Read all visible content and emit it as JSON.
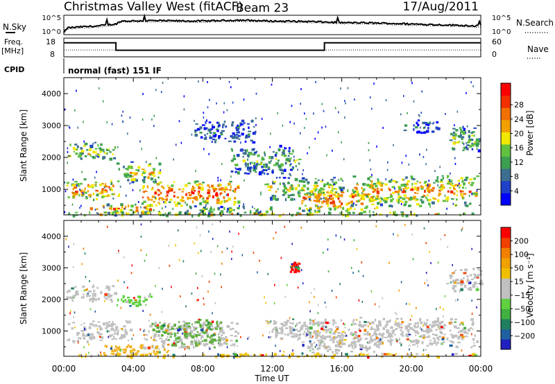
{
  "header": {
    "site": "Christmas Valley West (fitACF)",
    "beam": "Beam 23",
    "date": "17/Aug/2011"
  },
  "strip_labels": {
    "nsky": "N.Sky",
    "nsearch": "N.Search",
    "freq_line1": "Freq.",
    "freq_line2": "[MHz]",
    "nave": "Nave",
    "cpid": "CPID",
    "cpid_value": "normal (fast) 151 IF",
    "nsky_ticks": [
      "10^5",
      "10^0"
    ],
    "nsearch_ticks": [
      "10^5",
      "10^0"
    ],
    "freq_ticks": [
      "18",
      "8"
    ],
    "nave_ticks": [
      "60",
      "0"
    ]
  },
  "chart_data": [
    {
      "type": "line",
      "name": "strip-noise",
      "ylabel_left": "N.Sky",
      "ylabel_right": "N.Search",
      "ylim": [
        "10^0",
        "10^5"
      ],
      "x_hours": [
        0,
        0.2,
        1,
        2,
        3,
        3.3,
        5,
        8,
        10,
        12,
        14,
        16,
        18,
        20,
        22,
        24
      ],
      "nsky_level": [
        0.1,
        0.35,
        0.4,
        0.45,
        0.55,
        0.7,
        0.72,
        0.7,
        0.75,
        0.7,
        0.68,
        0.62,
        0.6,
        0.55,
        0.5,
        0.45
      ]
    },
    {
      "type": "line",
      "name": "strip-frequency",
      "x_hours": [
        0,
        3,
        3,
        15,
        15,
        24
      ],
      "freq_mhz": [
        15.5,
        15.5,
        11.5,
        11.5,
        15.5,
        15.5
      ],
      "nave": [
        22,
        22,
        22,
        22,
        22,
        22
      ],
      "left_ylim": [
        8,
        18
      ],
      "right_ylim": [
        0,
        60
      ]
    },
    {
      "type": "heatmap",
      "name": "power",
      "ylabel": "Slant Range [km]",
      "xlabel": "Time UT",
      "x_ticks": [
        "00:00",
        "04:00",
        "08:00",
        "12:00",
        "16:00",
        "20:00",
        "00:00"
      ],
      "y_ticks": [
        1000,
        2000,
        3000,
        4000
      ],
      "xlim_hours": [
        0,
        24
      ],
      "ylim_km": [
        200,
        4500
      ],
      "colorbar": {
        "label": "Power [dB]",
        "ticks": [
          "4",
          "8",
          "12",
          "16",
          "20",
          "24",
          "28"
        ],
        "colors": [
          "#0000ff",
          "#2040c8",
          "#3c6e90",
          "#3c9e50",
          "#60c040",
          "#f0e800",
          "#f0a000",
          "#f07000",
          "#f03000",
          "#ff0000"
        ]
      },
      "echo_regions": [
        {
          "t0": 0.1,
          "t1": 3.0,
          "r0": 1950,
          "r1": 2500,
          "level": 0.55
        },
        {
          "t0": 0.1,
          "t1": 3.2,
          "r0": 700,
          "r1": 1350,
          "level": 0.75
        },
        {
          "t0": 1.5,
          "t1": 5.5,
          "r0": 250,
          "r1": 600,
          "level": 0.7
        },
        {
          "t0": 3.0,
          "t1": 5.5,
          "r0": 1200,
          "r1": 1900,
          "level": 0.6
        },
        {
          "t0": 4.5,
          "t1": 10.0,
          "r0": 500,
          "r1": 1300,
          "level": 0.85
        },
        {
          "t0": 7.0,
          "t1": 12.0,
          "r0": 250,
          "r1": 500,
          "level": 0.45
        },
        {
          "t0": 7.5,
          "t1": 11.0,
          "r0": 2500,
          "r1": 3200,
          "level": 0.25
        },
        {
          "t0": 9.5,
          "t1": 13.5,
          "r0": 1500,
          "r1": 2400,
          "level": 0.4
        },
        {
          "t0": 11.5,
          "t1": 16.0,
          "r0": 700,
          "r1": 1400,
          "level": 0.55
        },
        {
          "t0": 13.5,
          "t1": 18.0,
          "r0": 300,
          "r1": 1100,
          "level": 0.8
        },
        {
          "t0": 16.5,
          "t1": 23.8,
          "r0": 500,
          "r1": 1450,
          "level": 0.7
        },
        {
          "t0": 19.5,
          "t1": 21.5,
          "r0": 2800,
          "r1": 3200,
          "level": 0.25
        },
        {
          "t0": 22.0,
          "t1": 24.0,
          "r0": 2200,
          "r1": 3000,
          "level": 0.45
        },
        {
          "t0": 0.1,
          "t1": 24.0,
          "r0": 200,
          "r1": 320,
          "level": 0.6
        }
      ]
    },
    {
      "type": "heatmap",
      "name": "velocity",
      "ylabel": "Slant Range [km]",
      "xlabel": "Time UT",
      "x_ticks": [
        "00:00",
        "04:00",
        "08:00",
        "12:00",
        "16:00",
        "20:00",
        "00:00"
      ],
      "y_ticks": [
        1000,
        2000,
        3000,
        4000
      ],
      "xlim_hours": [
        0,
        24
      ],
      "ylim_km": [
        200,
        4500
      ],
      "colorbar": {
        "label": "Velocity [m s⁻¹]",
        "ticks": [
          "200",
          "100",
          "50",
          "15",
          "−15",
          "−50",
          "−100",
          "−200"
        ],
        "colors": [
          "#2020c0",
          "#2060a0",
          "#208060",
          "#40b040",
          "#60d040",
          "#c0c0c0",
          "#c0c0c0",
          "#f0c000",
          "#f0a000",
          "#f08000",
          "#f04000",
          "#ff0000"
        ]
      },
      "echo_regions": [
        {
          "t0": 0.1,
          "t1": 3.0,
          "r0": 1950,
          "r1": 2500,
          "color": "#c0c0c0"
        },
        {
          "t0": 0.1,
          "t1": 4.0,
          "r0": 700,
          "r1": 1350,
          "color": "#c0c0c0"
        },
        {
          "t0": 3.0,
          "t1": 5.0,
          "r0": 1800,
          "r1": 2200,
          "color": "#60d040"
        },
        {
          "t0": 4.5,
          "t1": 10.0,
          "r0": 500,
          "r1": 1300,
          "color": "#c0c0c0"
        },
        {
          "t0": 5.0,
          "t1": 9.0,
          "r0": 500,
          "r1": 1400,
          "color": "#60b040"
        },
        {
          "t0": 2.0,
          "t1": 6.0,
          "r0": 250,
          "r1": 600,
          "color": "#f0b020"
        },
        {
          "t0": 11.5,
          "t1": 16.0,
          "r0": 700,
          "r1": 1400,
          "color": "#c0c0c0"
        },
        {
          "t0": 13.5,
          "t1": 18.0,
          "r0": 300,
          "r1": 1100,
          "color": "#c0c0c0"
        },
        {
          "t0": 16.5,
          "t1": 23.8,
          "r0": 500,
          "r1": 1450,
          "color": "#c0c0c0"
        },
        {
          "t0": 22.0,
          "t1": 24.0,
          "r0": 2200,
          "r1": 3000,
          "color": "#c0c0c0"
        },
        {
          "t0": 13.0,
          "t1": 13.5,
          "r0": 2900,
          "r1": 3200,
          "color": "#ff0000"
        },
        {
          "t0": 0.1,
          "t1": 24.0,
          "r0": 200,
          "r1": 320,
          "color": "#f0c000"
        }
      ]
    }
  ]
}
